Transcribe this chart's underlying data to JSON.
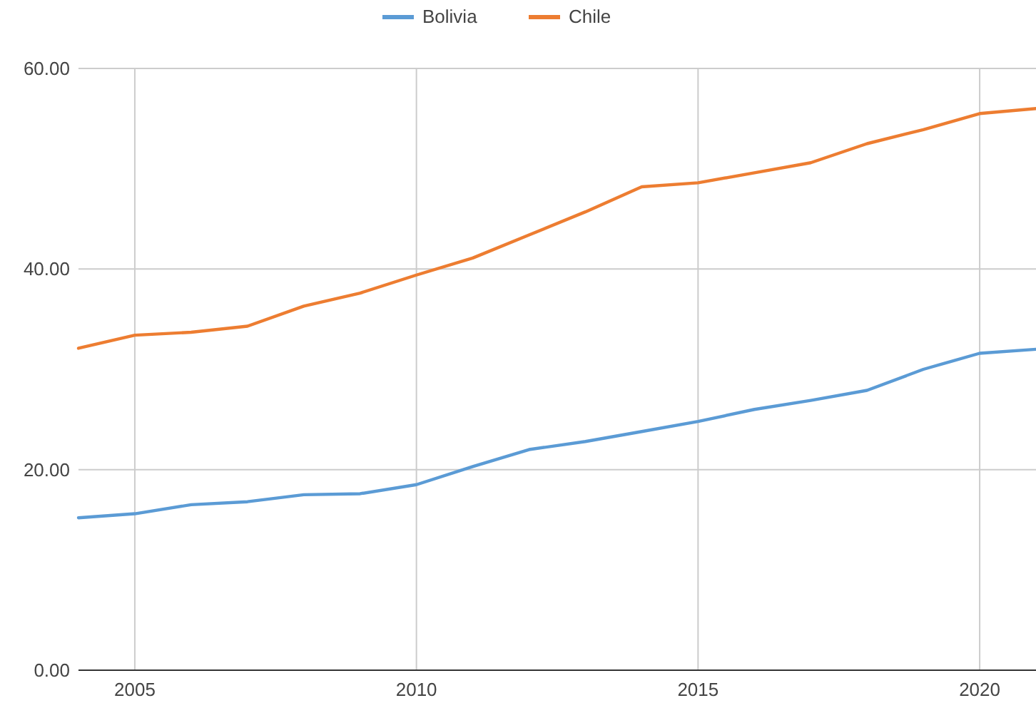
{
  "chart_data": {
    "type": "line",
    "x": [
      2004,
      2005,
      2006,
      2007,
      2008,
      2009,
      2010,
      2011,
      2012,
      2013,
      2014,
      2015,
      2016,
      2017,
      2018,
      2019,
      2020,
      2021
    ],
    "series": [
      {
        "name": "Bolivia",
        "color": "#5b9bd5",
        "values": [
          15.2,
          15.6,
          16.5,
          16.8,
          17.5,
          17.6,
          18.5,
          20.3,
          22.0,
          22.8,
          23.8,
          24.8,
          26.0,
          26.9,
          27.9,
          30.0,
          31.6,
          32.0
        ]
      },
      {
        "name": "Chile",
        "color": "#ed7d31",
        "values": [
          32.1,
          33.4,
          33.7,
          34.3,
          36.3,
          37.6,
          39.4,
          41.1,
          43.4,
          45.7,
          48.2,
          48.6,
          49.6,
          50.6,
          52.5,
          53.9,
          55.5,
          56.0
        ]
      }
    ],
    "xlim": [
      2004,
      2021
    ],
    "xticks": [
      2005,
      2010,
      2015,
      2020
    ],
    "ylim": [
      0,
      60
    ],
    "yticks": [
      {
        "value": 0,
        "label": "0.00"
      },
      {
        "value": 20,
        "label": "20.00"
      },
      {
        "value": 40,
        "label": "40.00"
      },
      {
        "value": 60,
        "label": "60.00"
      }
    ],
    "grid": true,
    "legend": "top",
    "marker": "none",
    "line_style": "solid"
  }
}
